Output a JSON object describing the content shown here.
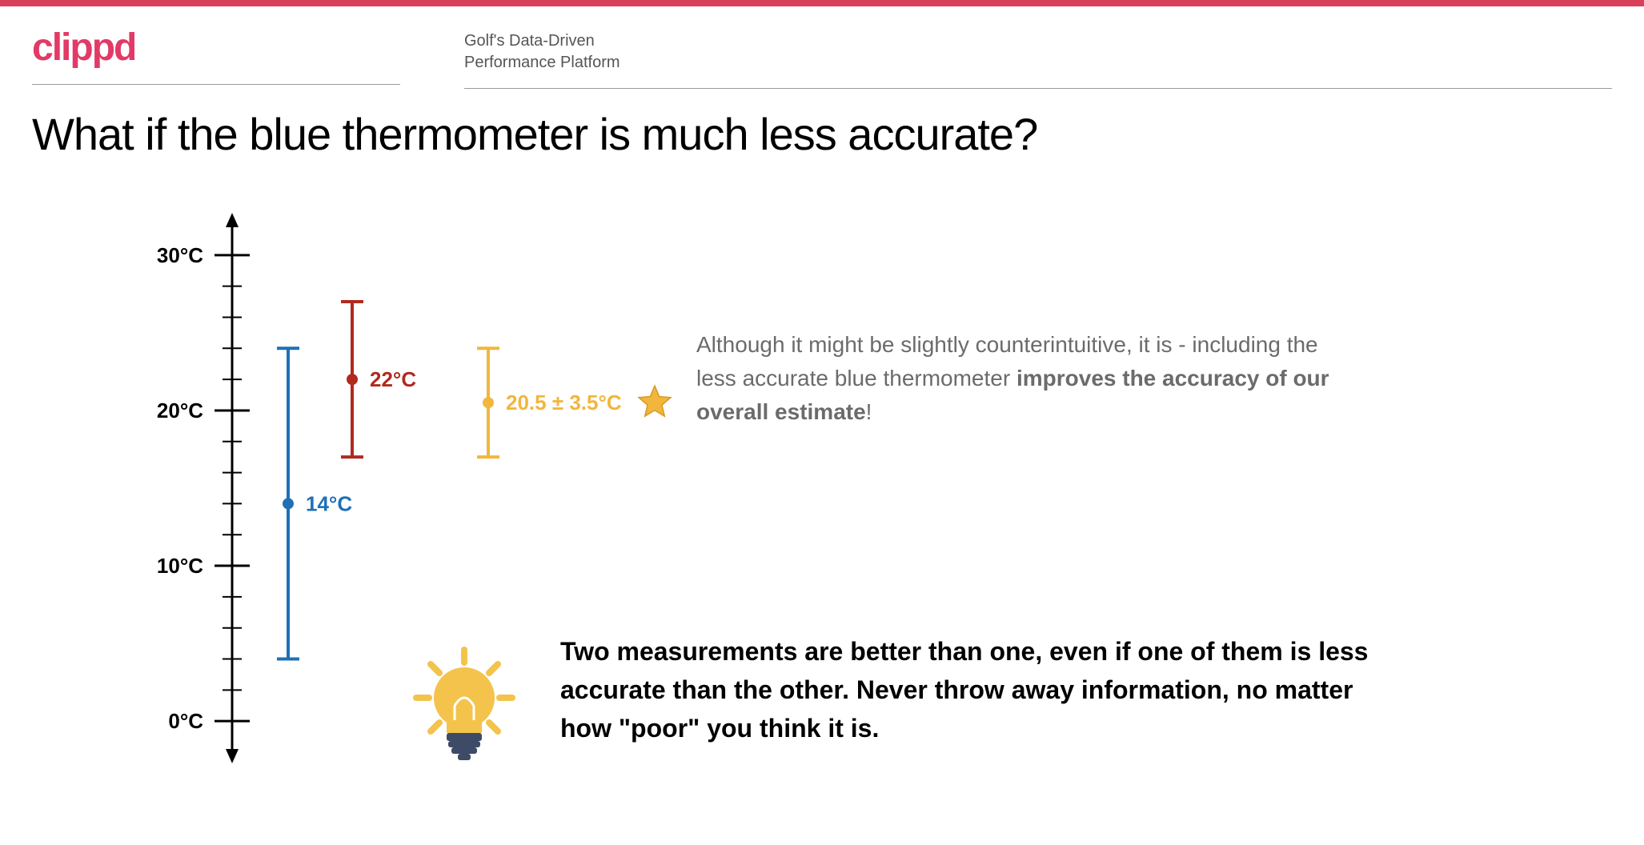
{
  "theme": {
    "topbar_color": "#d9405a",
    "logo_color": "#e23a67",
    "background": "#ffffff",
    "axis_color": "#000000",
    "text_muted": "#6b6b6b",
    "text_body": "#000000"
  },
  "header": {
    "logo_text": "clippd",
    "tagline_line1": "Golf's Data-Driven",
    "tagline_line2": "Performance Platform"
  },
  "title": "What if the blue thermometer is much less accurate?",
  "axis": {
    "min": -2,
    "max": 32,
    "major_ticks": [
      0,
      10,
      20,
      30
    ],
    "major_labels": [
      "0°C",
      "10°C",
      "20°C",
      "30°C"
    ],
    "minor_step": 2,
    "tick_fontsize": 26,
    "tick_fontweight": "700",
    "tick_color": "#000000",
    "axis_stroke_width": 3,
    "major_tick_len": 22,
    "minor_tick_len": 12
  },
  "series": [
    {
      "id": "blue",
      "color": "#1f70b5",
      "value": 14,
      "low": 4,
      "high": 24,
      "x_offset": 70,
      "label": "14°C",
      "label_fontsize": 26,
      "marker_radius": 7,
      "line_width": 4,
      "cap_half": 14
    },
    {
      "id": "red",
      "color": "#b02a1f",
      "value": 22,
      "low": 17,
      "high": 27,
      "x_offset": 150,
      "label": "22°C",
      "label_fontsize": 26,
      "marker_radius": 7,
      "line_width": 4,
      "cap_half": 14
    },
    {
      "id": "yellow",
      "color": "#f2b63c",
      "value": 20.5,
      "low": 17,
      "high": 24,
      "x_offset": 320,
      "label": "20.5 ± 3.5°C",
      "label_fontsize": 26,
      "marker_radius": 7,
      "line_width": 4,
      "cap_half": 14,
      "star": true
    }
  ],
  "star": {
    "fill": "#f2b63c",
    "stroke": "#d89a24",
    "size": 42
  },
  "explanation": {
    "prefix": "Although it might be slightly counterintuitive, it is - including the less accurate blue thermometer ",
    "bold": "improves the accuracy of our overall estimate",
    "suffix": "!"
  },
  "lightbulb": {
    "bulb_fill": "#f3c34b",
    "ray_fill": "#f3c34b",
    "base_fill": "#3d4b66",
    "highlight": "#ffffff"
  },
  "insight": "Two measurements are better than one, even if one of them is less accurate than the other. Never throw away information, no matter how \"poor\" you think it is."
}
